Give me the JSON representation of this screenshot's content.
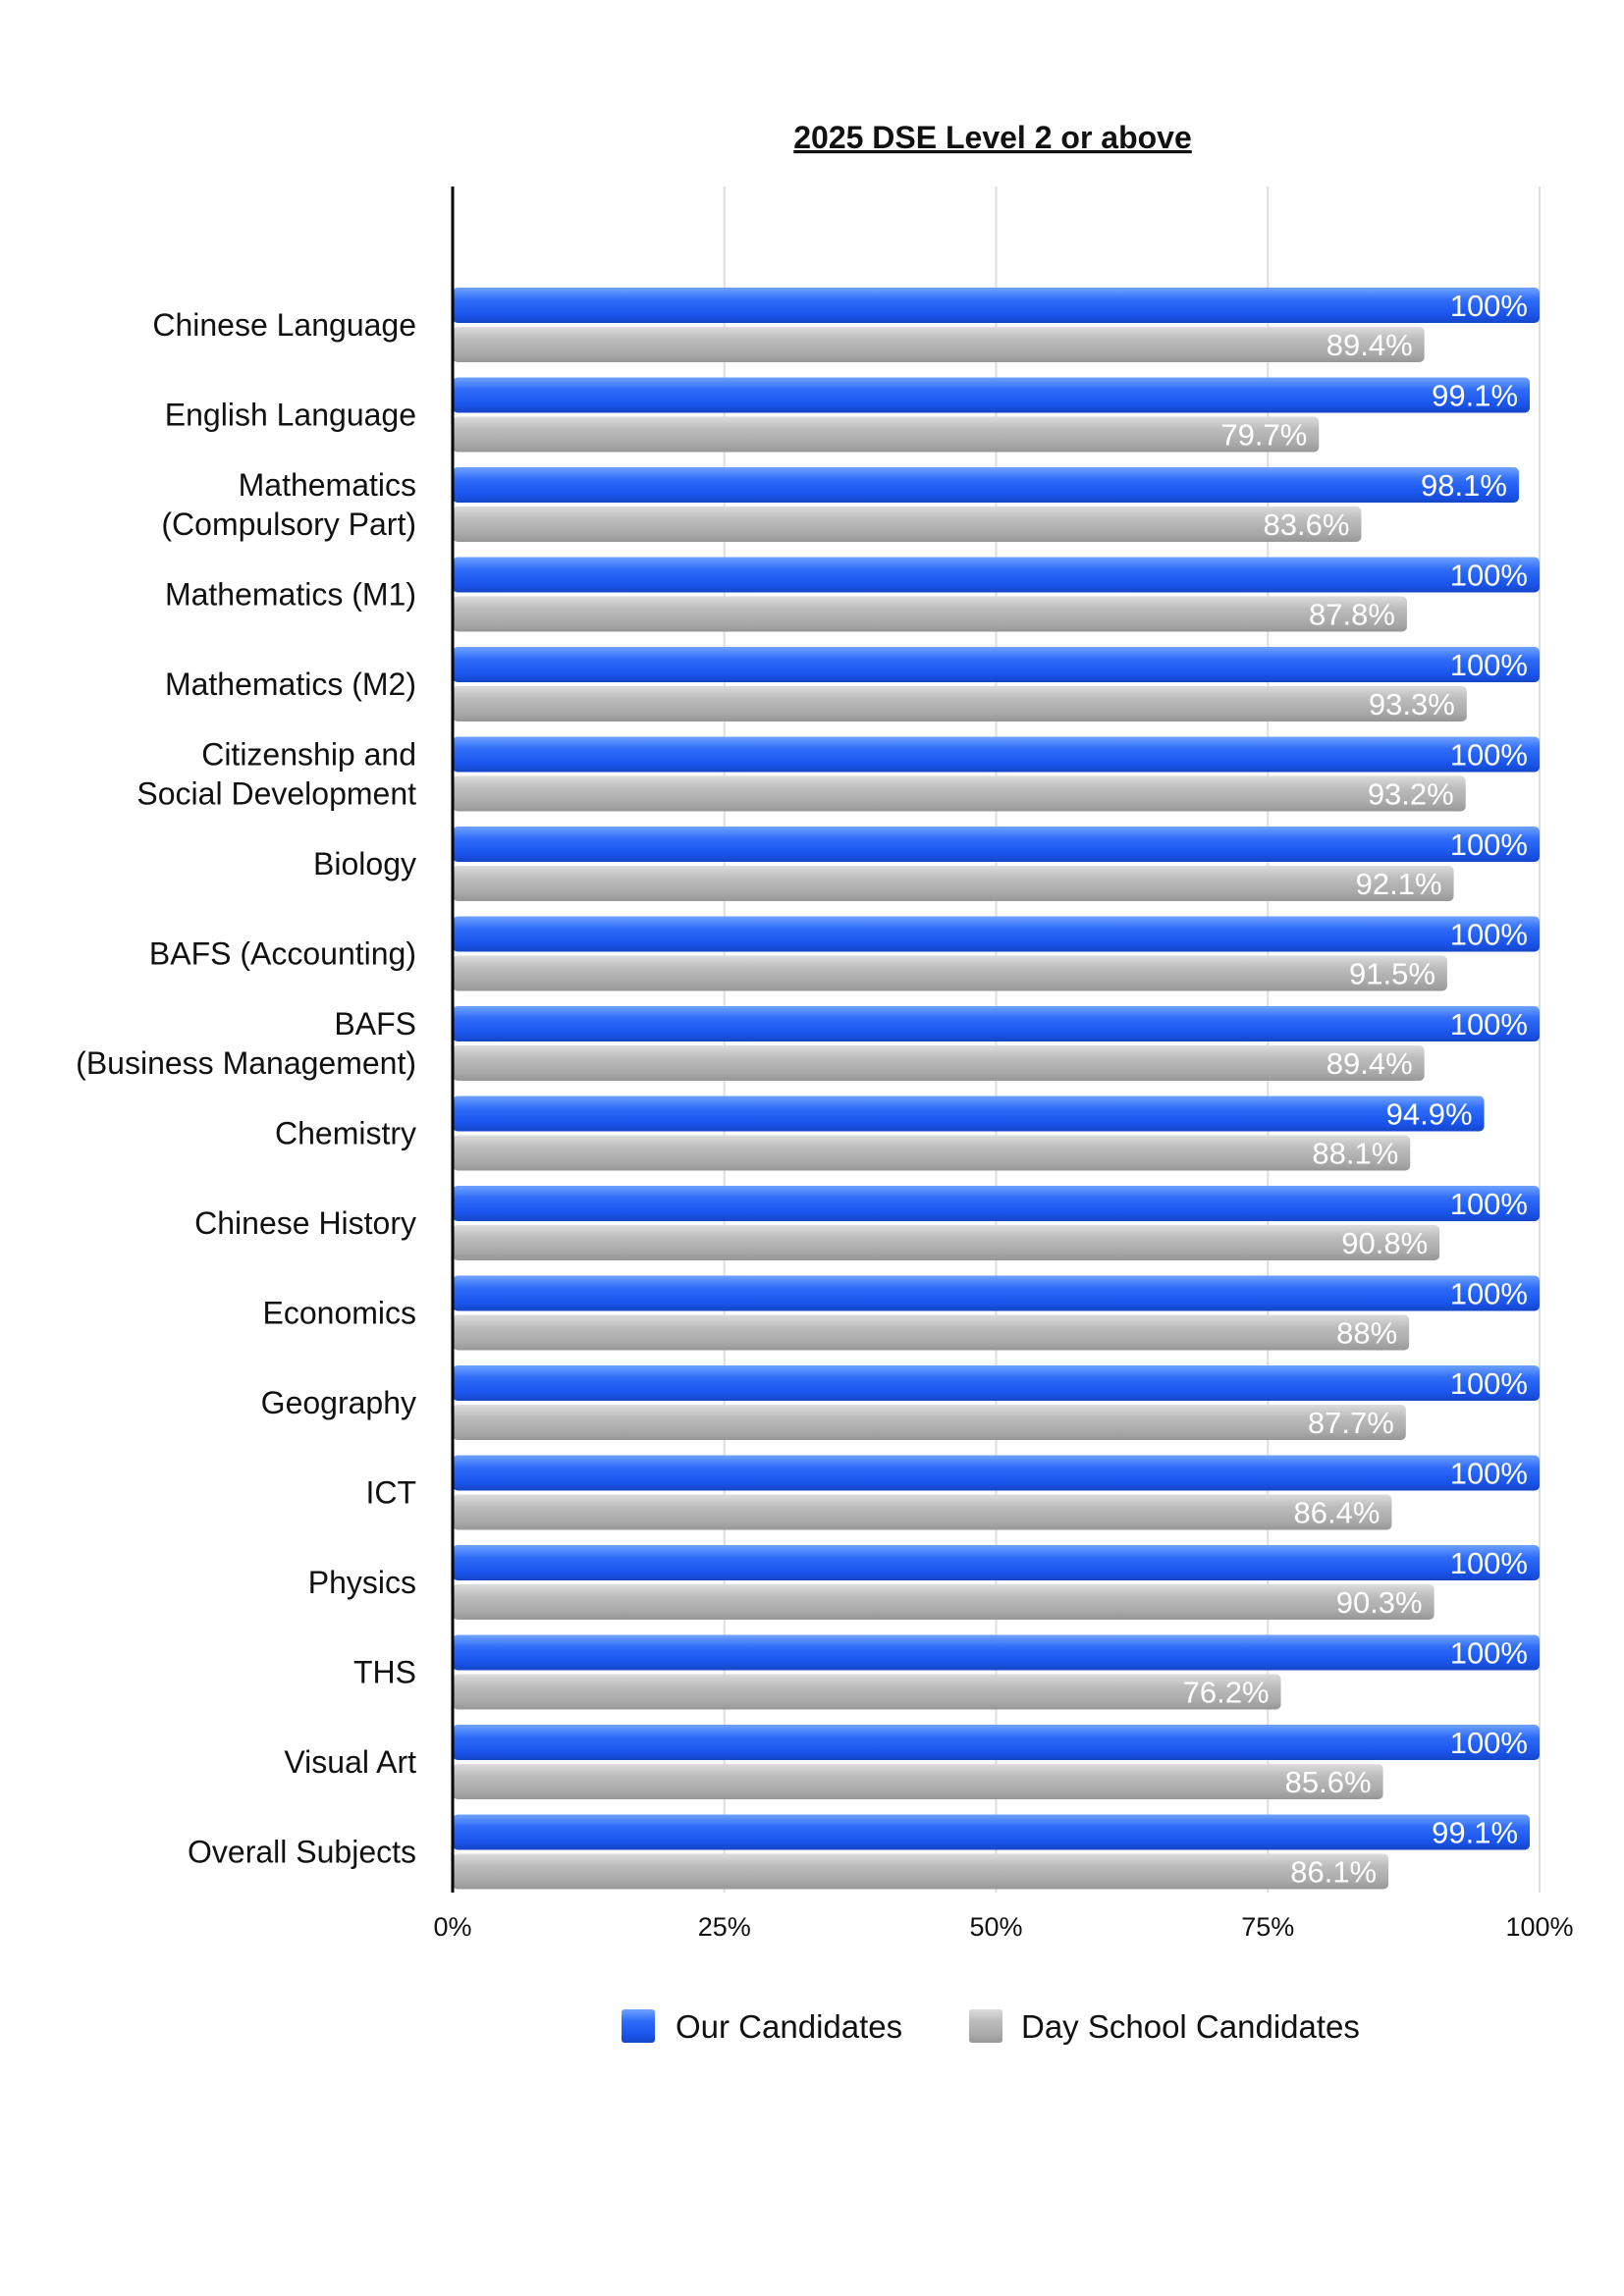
{
  "chart_data": {
    "type": "bar",
    "orientation": "horizontal",
    "title": "2025 DSE Level 2 or above",
    "categories": [
      [
        "Chinese Language"
      ],
      [
        "English Language"
      ],
      [
        "Mathematics",
        "(Compulsory Part)"
      ],
      [
        "Mathematics (M1)"
      ],
      [
        "Mathematics (M2)"
      ],
      [
        "Citizenship and",
        "Social Development"
      ],
      [
        "Biology"
      ],
      [
        "BAFS (Accounting)"
      ],
      [
        "BAFS",
        "(Business Management)"
      ],
      [
        "Chemistry"
      ],
      [
        "Chinese History"
      ],
      [
        "Economics"
      ],
      [
        "Geography"
      ],
      [
        "ICT"
      ],
      [
        "Physics"
      ],
      [
        "THS"
      ],
      [
        "Visual Art"
      ],
      [
        "Overall Subjects"
      ]
    ],
    "series": [
      {
        "name": "Our Candidates",
        "color": "#1f5cf2",
        "values": [
          100,
          99.1,
          98.1,
          100,
          100,
          100,
          100,
          100,
          100,
          94.9,
          100,
          100,
          100,
          100,
          100,
          100,
          100,
          99.1
        ],
        "labels": [
          "100%",
          "99.1%",
          "98.1%",
          "100%",
          "100%",
          "100%",
          "100%",
          "100%",
          "100%",
          "94.9%",
          "100%",
          "100%",
          "100%",
          "100%",
          "100%",
          "100%",
          "100%",
          "99.1%"
        ]
      },
      {
        "name": "Day School Candidates",
        "color": "#b0b0b0",
        "values": [
          89.4,
          79.7,
          83.6,
          87.8,
          93.3,
          93.2,
          92.1,
          91.5,
          89.4,
          88.1,
          90.8,
          88,
          87.7,
          86.4,
          90.3,
          76.2,
          85.6,
          86.1
        ],
        "labels": [
          "89.4%",
          "79.7%",
          "83.6%",
          "87.8%",
          "93.3%",
          "93.2%",
          "92.1%",
          "91.5%",
          "89.4%",
          "88.1%",
          "90.8%",
          "88%",
          "87.7%",
          "86.4%",
          "90.3%",
          "76.2%",
          "85.6%",
          "86.1%"
        ]
      }
    ],
    "xlim": [
      0,
      100
    ],
    "xticks": [
      0,
      25,
      50,
      75,
      100
    ],
    "xtick_labels": [
      "0%",
      "25%",
      "50%",
      "75%",
      "100%"
    ],
    "grid": "vertical",
    "legend_position": "bottom-center"
  }
}
